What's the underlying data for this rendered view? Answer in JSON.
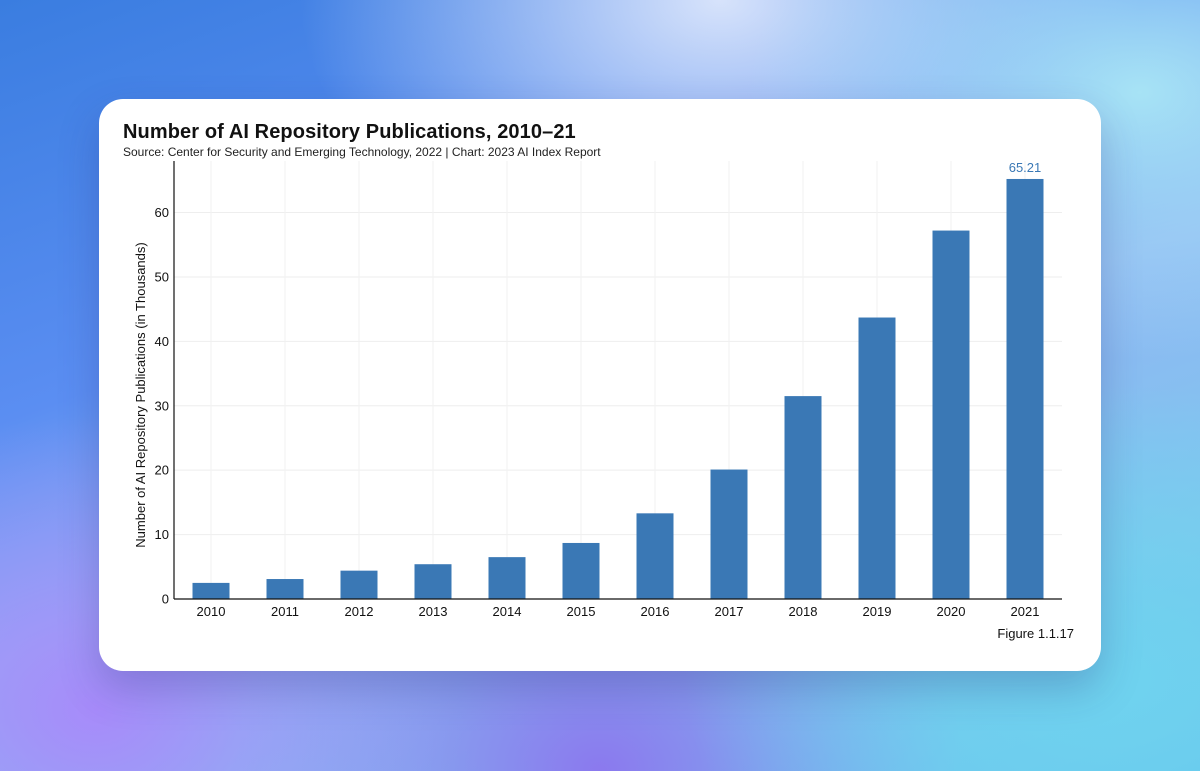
{
  "chart_data": {
    "type": "bar",
    "title": "Number of AI Repository Publications, 2010–21",
    "subtitle": "Source: Center for Security and Emerging Technology, 2022 | Chart: 2023 AI Index Report",
    "xlabel": "",
    "ylabel": "Number of AI Repository Publications (in Thousands)",
    "categories": [
      "2010",
      "2011",
      "2012",
      "2013",
      "2014",
      "2015",
      "2016",
      "2017",
      "2018",
      "2019",
      "2020",
      "2021"
    ],
    "values": [
      2.5,
      3.1,
      4.4,
      5.4,
      6.5,
      8.7,
      13.3,
      20.1,
      31.5,
      43.7,
      57.2,
      65.21
    ],
    "data_labels": [
      {
        "index": 11,
        "text": "65.21"
      }
    ],
    "ylim": [
      0,
      68
    ],
    "yticks": [
      0,
      10,
      20,
      30,
      40,
      50,
      60
    ],
    "grid": true,
    "bar_color": "#3a78b5"
  },
  "figure_label": "Figure 1.1.17"
}
